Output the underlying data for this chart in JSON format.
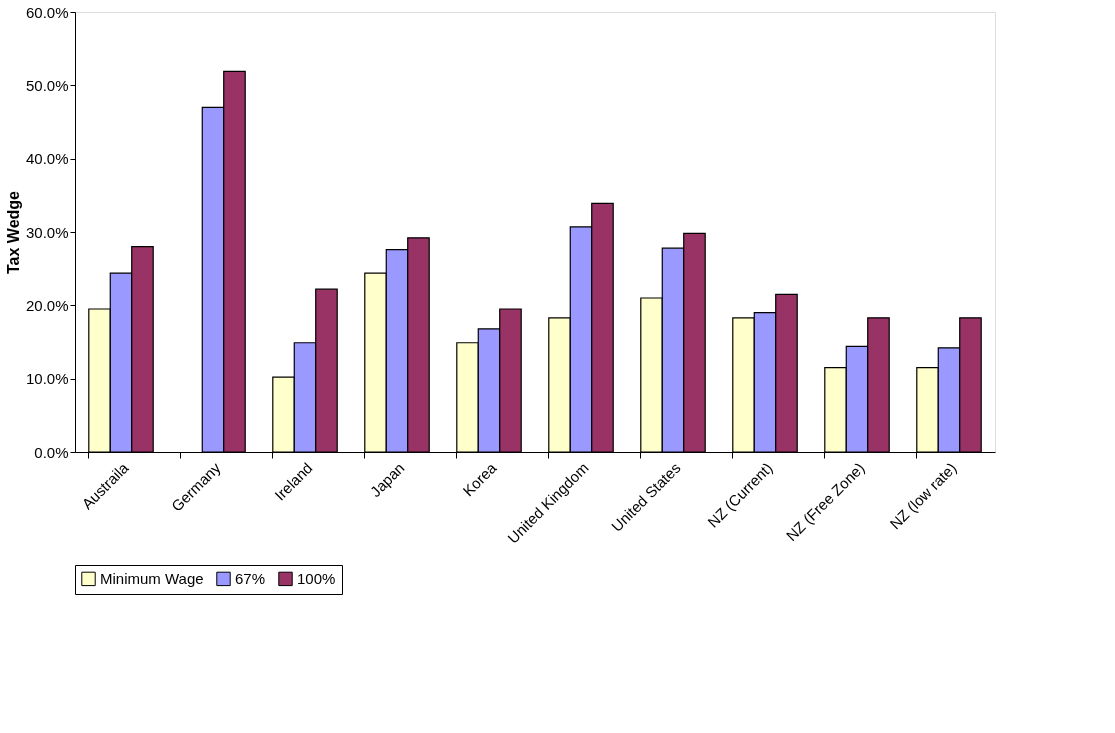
{
  "chart_data": {
    "type": "bar",
    "ylabel": "Tax Wedge",
    "categories": [
      "Austraila",
      "Germany",
      "Ireland",
      "Japan",
      "Korea",
      "United Kingdom",
      "United States",
      "NZ (Current)",
      "NZ (Free Zone)",
      "NZ (low rate)"
    ],
    "series": [
      {
        "name": "Minimum Wage",
        "color": "#ffffcc",
        "values": [
          19.5,
          null,
          10.2,
          24.4,
          14.9,
          18.3,
          21.0,
          18.3,
          11.5,
          11.5
        ]
      },
      {
        "name": "67%",
        "color": "#9999ff",
        "values": [
          24.4,
          47.0,
          14.9,
          27.6,
          16.8,
          30.7,
          27.8,
          19.0,
          14.4,
          14.2
        ]
      },
      {
        "name": "100%",
        "color": "#993366",
        "values": [
          28.0,
          51.9,
          22.2,
          29.2,
          19.5,
          33.9,
          29.8,
          21.5,
          18.3,
          18.3
        ]
      }
    ],
    "ylim": [
      0,
      60
    ],
    "yticks": [
      {
        "value": 0,
        "label": "0.0%"
      },
      {
        "value": 10,
        "label": "10.0%"
      },
      {
        "value": 20,
        "label": "20.0%"
      },
      {
        "value": 30,
        "label": "30.0%"
      },
      {
        "value": 40,
        "label": "40.0%"
      },
      {
        "value": 50,
        "label": "50.0%"
      },
      {
        "value": 60,
        "label": "60.0%"
      }
    ],
    "grid": false,
    "legend": "bottom"
  }
}
